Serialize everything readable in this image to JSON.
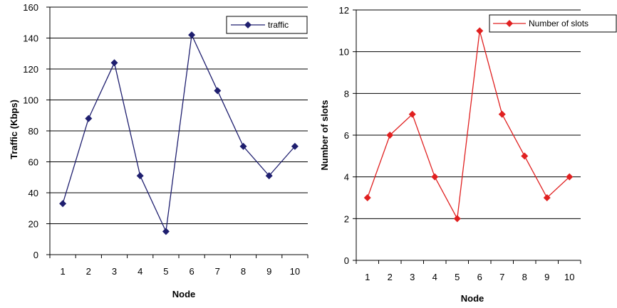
{
  "chart_data": [
    {
      "type": "line",
      "x": [
        1,
        2,
        3,
        4,
        5,
        6,
        7,
        8,
        9,
        10
      ],
      "series": [
        {
          "name": "traffic",
          "values": [
            33,
            88,
            124,
            51,
            15,
            142,
            106,
            70,
            51,
            70
          ],
          "color": "#1f1f6f"
        }
      ],
      "title": "",
      "xlabel": "Node",
      "ylabel": "Traffic (Kbps)",
      "ylim": [
        0,
        160
      ],
      "yticks": [
        0,
        20,
        40,
        60,
        80,
        100,
        120,
        140,
        160
      ],
      "grid": true,
      "legend": "top-right"
    },
    {
      "type": "line",
      "x": [
        1,
        2,
        3,
        4,
        5,
        6,
        7,
        8,
        9,
        10
      ],
      "series": [
        {
          "name": "Number of slots",
          "values": [
            3,
            6,
            7,
            4,
            2,
            11,
            7,
            5,
            3,
            4
          ],
          "color": "#e02020"
        }
      ],
      "title": "",
      "xlabel": "Node",
      "ylabel": "Number of slots",
      "ylim": [
        0,
        12
      ],
      "yticks": [
        0,
        2,
        4,
        6,
        8,
        10,
        12
      ],
      "grid": true,
      "legend": "top-right"
    }
  ]
}
